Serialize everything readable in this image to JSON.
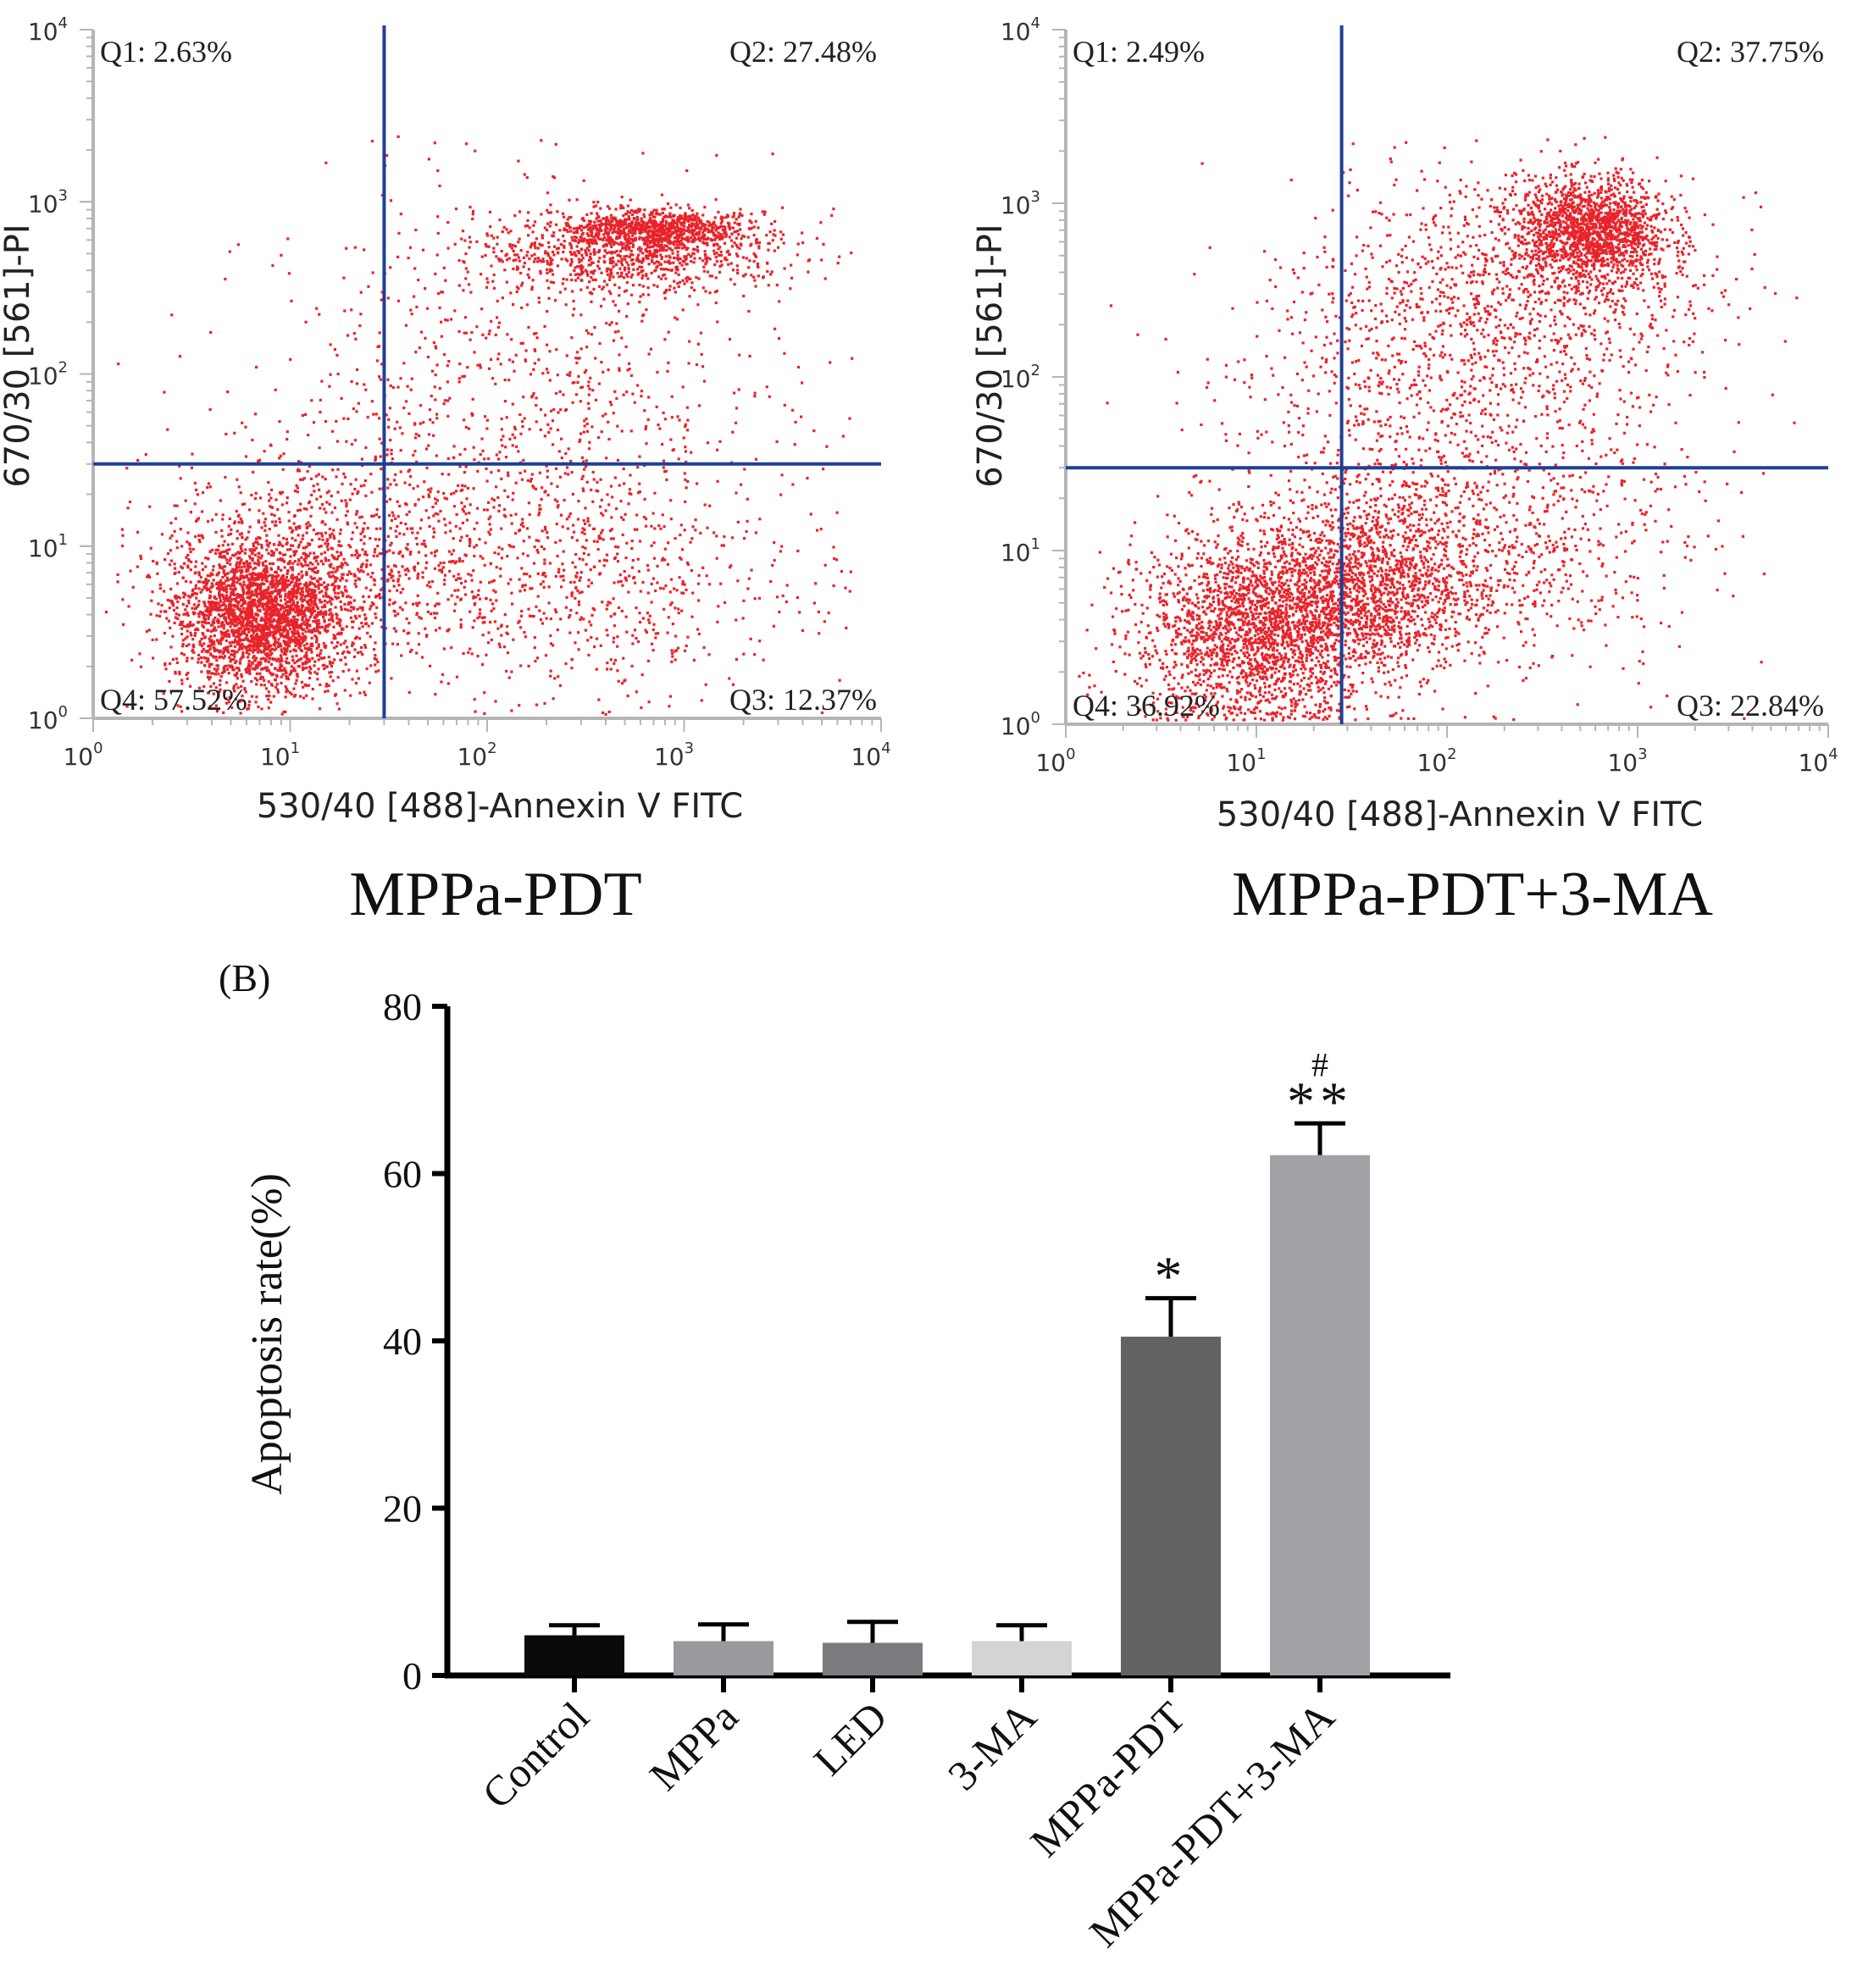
{
  "figure": {
    "panel_b_label": "(B)"
  },
  "chart_data": [
    {
      "type": "scatter",
      "name": "flow-cytometry-mppa-pdt",
      "title": "MPPa-PDT",
      "xlabel": "530/40 [488]-Annexin V FITC",
      "ylabel": "670/30 [561]-PI",
      "scale": "log10",
      "xlim": [
        1,
        10000
      ],
      "ylim": [
        1,
        10000
      ],
      "x_ticks": [
        {
          "base": "10",
          "exp": "0"
        },
        {
          "base": "10",
          "exp": "1"
        },
        {
          "base": "10",
          "exp": "2"
        },
        {
          "base": "10",
          "exp": "3"
        },
        {
          "base": "10",
          "exp": "4"
        }
      ],
      "y_ticks": [
        {
          "base": "10",
          "exp": "0"
        },
        {
          "base": "10",
          "exp": "1"
        },
        {
          "base": "10",
          "exp": "2"
        },
        {
          "base": "10",
          "exp": "3"
        },
        {
          "base": "10",
          "exp": "4"
        }
      ],
      "gate": {
        "x": 30,
        "y": 30
      },
      "quadrants": {
        "q1": "Q1: 2.63%",
        "q2": "Q2: 27.48%",
        "q3": "Q3: 12.37%",
        "q4": "Q4: 57.52%"
      },
      "clusters": [
        {
          "x_log": 0.85,
          "y_log": 0.6,
          "sx": 0.22,
          "sy": 0.22,
          "n": 2600
        },
        {
          "x_log": 1.3,
          "y_log": 0.95,
          "sx": 0.5,
          "sy": 0.35,
          "n": 900
        },
        {
          "x_log": 2.85,
          "y_log": 2.85,
          "sx": 0.22,
          "sy": 0.05,
          "n": 700
        },
        {
          "x_log": 2.75,
          "y_log": 2.72,
          "sx": 0.4,
          "sy": 0.12,
          "n": 900
        },
        {
          "x_log": 2.2,
          "y_log": 1.8,
          "sx": 0.65,
          "sy": 0.6,
          "n": 900
        },
        {
          "x_log": 2.6,
          "y_log": 0.75,
          "sx": 0.5,
          "sy": 0.3,
          "n": 500
        }
      ],
      "point_color": "#e8232a",
      "gate_color": "#1f3f93"
    },
    {
      "type": "scatter",
      "name": "flow-cytometry-mppa-pdt-3ma",
      "title": "MPPa-PDT+3-MA",
      "xlabel": "530/40 [488]-Annexin V FITC",
      "ylabel": "670/30 [561]-PI",
      "scale": "log10",
      "xlim": [
        1,
        10000
      ],
      "ylim": [
        1,
        10000
      ],
      "x_ticks": [
        {
          "base": "10",
          "exp": "0"
        },
        {
          "base": "10",
          "exp": "1"
        },
        {
          "base": "10",
          "exp": "2"
        },
        {
          "base": "10",
          "exp": "3"
        },
        {
          "base": "10",
          "exp": "4"
        }
      ],
      "y_ticks": [
        {
          "base": "10",
          "exp": "0"
        },
        {
          "base": "10",
          "exp": "1"
        },
        {
          "base": "10",
          "exp": "2"
        },
        {
          "base": "10",
          "exp": "3"
        },
        {
          "base": "10",
          "exp": "4"
        }
      ],
      "gate": {
        "x": 28,
        "y": 30
      },
      "quadrants": {
        "q1": "Q1: 2.49%",
        "q2": "Q2: 37.75%",
        "q3": "Q3: 22.84%",
        "q4": "Q4: 36.92%"
      },
      "clusters": [
        {
          "x_log": 1.0,
          "y_log": 0.55,
          "sx": 0.32,
          "sy": 0.28,
          "n": 2200
        },
        {
          "x_log": 1.6,
          "y_log": 0.8,
          "sx": 0.28,
          "sy": 0.25,
          "n": 1300
        },
        {
          "x_log": 2.75,
          "y_log": 2.85,
          "sx": 0.2,
          "sy": 0.15,
          "n": 1500
        },
        {
          "x_log": 2.4,
          "y_log": 2.5,
          "sx": 0.5,
          "sy": 0.35,
          "n": 900
        },
        {
          "x_log": 1.9,
          "y_log": 1.7,
          "sx": 0.55,
          "sy": 0.6,
          "n": 1000
        },
        {
          "x_log": 2.4,
          "y_log": 1.0,
          "sx": 0.45,
          "sy": 0.35,
          "n": 500
        }
      ],
      "point_color": "#e8232a",
      "gate_color": "#1f3f93"
    },
    {
      "type": "bar",
      "name": "apoptosis-rate",
      "ylabel": "Apoptosis rate(%)",
      "ylim": [
        0,
        80
      ],
      "y_ticks": [
        "0",
        "20",
        "40",
        "60",
        "80"
      ],
      "categories": [
        "Control",
        "MPPa",
        "LED",
        "3-MA",
        "MPPa-PDT",
        "MPPa-PDT+3-MA"
      ],
      "values": [
        4.8,
        4.1,
        3.9,
        4.1,
        40.5,
        62.2
      ],
      "errors": [
        1.2,
        2.0,
        2.5,
        1.9,
        4.6,
        3.8
      ],
      "colors": [
        "#0a0a0a",
        "#9a999e",
        "#7b7a7e",
        "#d4d4d4",
        "#636363",
        "#a2a1a6"
      ],
      "annotations": [
        "",
        "",
        "",
        "",
        "*",
        "**"
      ],
      "top_annotations": [
        "",
        "",
        "",
        "",
        "",
        "#"
      ]
    }
  ]
}
